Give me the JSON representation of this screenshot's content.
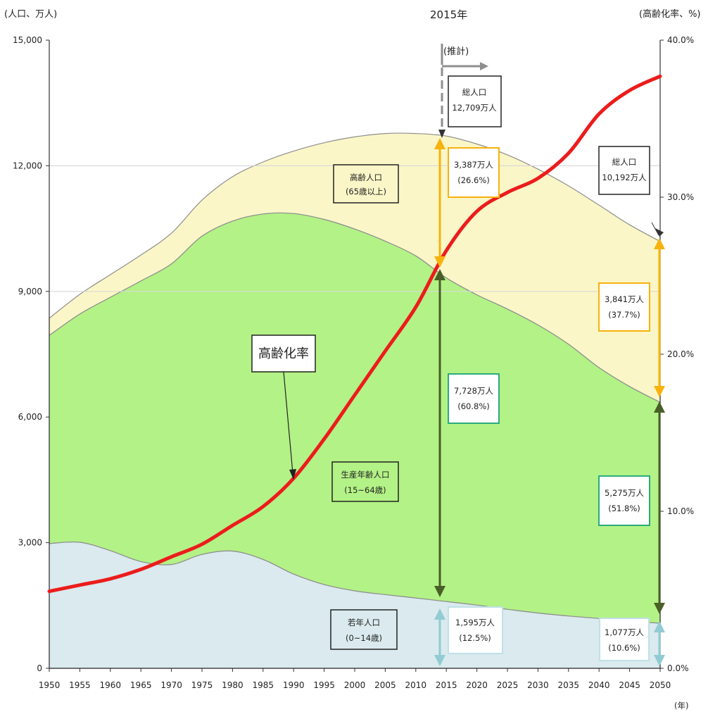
{
  "chart_data": {
    "type": "area",
    "title": "2015年",
    "ylabel_left": "(人口、万人)",
    "ylabel_right": "(高齢化率、%)",
    "xlabel": "(年)",
    "projection_label": "(推計)",
    "ylim_left": [
      0,
      15000
    ],
    "ylim_right": [
      0,
      40
    ],
    "y_ticks_left": [
      0,
      3000,
      6000,
      9000,
      12000,
      15000
    ],
    "y_tick_labels_left": [
      "0",
      "3,000",
      "6,000",
      "9,000",
      "12,000",
      "15,000"
    ],
    "y_ticks_right": [
      0,
      10,
      20,
      30,
      40
    ],
    "y_tick_labels_right": [
      "0.0%",
      "10.0%",
      "20.0%",
      "30.0%",
      "40.0%"
    ],
    "x_ticks": [
      1950,
      1955,
      1960,
      1965,
      1970,
      1975,
      1980,
      1985,
      1990,
      1995,
      2000,
      2005,
      2010,
      2015,
      2020,
      2025,
      2030,
      2035,
      2040,
      2045,
      2050
    ],
    "grid_lines": [
      9000,
      12000
    ],
    "colors": {
      "young": "#daeaee",
      "working": "#b3f286",
      "elderly": "#fbf6c7",
      "aging_rate": "#ec1c1c",
      "gold": "#f7b20e",
      "dark_green": "#4a5e28",
      "light_blue": "#92cbd3",
      "teal_border": "#2aac7c",
      "gray_line": "#8e8e8e"
    },
    "x": [
      1950,
      1955,
      1960,
      1965,
      1970,
      1975,
      1980,
      1985,
      1990,
      1995,
      2000,
      2005,
      2010,
      2015,
      2020,
      2025,
      2030,
      2035,
      2040,
      2045,
      2050
    ],
    "series": [
      {
        "name": "若年人口",
        "values": [
          2980,
          3010,
          2810,
          2550,
          2480,
          2720,
          2800,
          2600,
          2250,
          2000,
          1850,
          1760,
          1680,
          1595,
          1510,
          1410,
          1320,
          1250,
          1190,
          1130,
          1077
        ]
      },
      {
        "name": "生産年齢人口",
        "values": [
          4970,
          5450,
          6050,
          6700,
          7180,
          7600,
          7880,
          8250,
          8610,
          8720,
          8640,
          8440,
          8170,
          7728,
          7410,
          7170,
          6880,
          6490,
          5990,
          5600,
          5275
        ]
      },
      {
        "name": "高齢人口",
        "values": [
          410,
          470,
          540,
          620,
          730,
          860,
          1060,
          1240,
          1490,
          1830,
          2200,
          2570,
          2920,
          3387,
          3600,
          3680,
          3720,
          3780,
          3880,
          3860,
          3841
        ]
      }
    ],
    "aging_rate_values": [
      4.9,
      5.3,
      5.7,
      6.3,
      7.1,
      7.9,
      9.1,
      10.3,
      12.1,
      14.6,
      17.4,
      20.2,
      23.0,
      26.6,
      29.1,
      30.3,
      31.2,
      32.8,
      35.3,
      36.8,
      37.7
    ],
    "aging_rate_label": "高齢化率",
    "annotations": {
      "total_2015": {
        "label": "総人口",
        "value": "12,709万人"
      },
      "total_2050": {
        "label": "総人口",
        "value": "10,192万人"
      },
      "elderly_area": {
        "label": "高齢人口",
        "sub": "(65歳以上)"
      },
      "working_area": {
        "label": "生産年齢人口",
        "sub": "(15~64歳)"
      },
      "young_area": {
        "label": "若年人口",
        "sub": "(0~14歳)"
      },
      "elderly_2015": {
        "value": "3,387万人",
        "pct": "(26.6%)"
      },
      "working_2015": {
        "value": "7,728万人",
        "pct": "(60.8%)"
      },
      "young_2015": {
        "value": "1,595万人",
        "pct": "(12.5%)"
      },
      "elderly_2050": {
        "value": "3,841万人",
        "pct": "(37.7%)"
      },
      "working_2050": {
        "value": "5,275万人",
        "pct": "(51.8%)"
      },
      "young_2050": {
        "value": "1,077万人",
        "pct": "(10.6%)"
      }
    }
  }
}
